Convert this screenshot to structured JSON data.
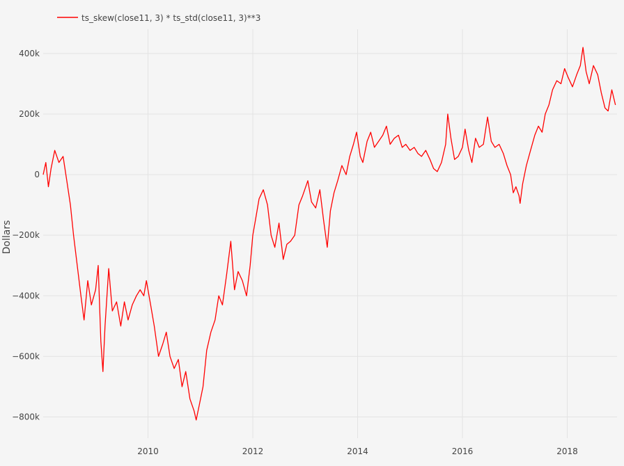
{
  "chart_data": {
    "type": "line",
    "ylabel": "Dollars",
    "xlim": [
      2008.0,
      2018.95
    ],
    "ylim": [
      -870000,
      480000
    ],
    "x_ticks": [
      {
        "value": 2010,
        "label": "2010"
      },
      {
        "value": 2012,
        "label": "2012"
      },
      {
        "value": 2014,
        "label": "2014"
      },
      {
        "value": 2016,
        "label": "2016"
      },
      {
        "value": 2018,
        "label": "2018"
      }
    ],
    "y_ticks": [
      {
        "value": 400000,
        "label": "400k"
      },
      {
        "value": 200000,
        "label": "200k"
      },
      {
        "value": 0,
        "label": "0"
      },
      {
        "value": -200000,
        "label": "−200k"
      },
      {
        "value": -400000,
        "label": "−400k"
      },
      {
        "value": -600000,
        "label": "−600k"
      },
      {
        "value": -800000,
        "label": "−800k"
      }
    ],
    "grid": true,
    "legend_position": "top-left",
    "series": [
      {
        "name": "ts_skew(close11, 3) * ts_std(close11, 3)**3",
        "color": "#ff0000",
        "points": [
          [
            2008.0,
            0
          ],
          [
            2008.05,
            40000
          ],
          [
            2008.1,
            -40000
          ],
          [
            2008.15,
            20000
          ],
          [
            2008.22,
            80000
          ],
          [
            2008.3,
            40000
          ],
          [
            2008.38,
            60000
          ],
          [
            2008.45,
            -20000
          ],
          [
            2008.52,
            -100000
          ],
          [
            2008.58,
            -200000
          ],
          [
            2008.65,
            -300000
          ],
          [
            2008.72,
            -400000
          ],
          [
            2008.78,
            -480000
          ],
          [
            2008.85,
            -350000
          ],
          [
            2008.92,
            -430000
          ],
          [
            2009.0,
            -380000
          ],
          [
            2009.05,
            -300000
          ],
          [
            2009.1,
            -550000
          ],
          [
            2009.14,
            -650000
          ],
          [
            2009.18,
            -500000
          ],
          [
            2009.25,
            -310000
          ],
          [
            2009.32,
            -450000
          ],
          [
            2009.4,
            -420000
          ],
          [
            2009.48,
            -500000
          ],
          [
            2009.55,
            -420000
          ],
          [
            2009.62,
            -480000
          ],
          [
            2009.7,
            -430000
          ],
          [
            2009.78,
            -400000
          ],
          [
            2009.85,
            -380000
          ],
          [
            2009.92,
            -400000
          ],
          [
            2009.97,
            -350000
          ],
          [
            2010.05,
            -430000
          ],
          [
            2010.12,
            -500000
          ],
          [
            2010.2,
            -600000
          ],
          [
            2010.28,
            -560000
          ],
          [
            2010.35,
            -520000
          ],
          [
            2010.42,
            -600000
          ],
          [
            2010.5,
            -640000
          ],
          [
            2010.58,
            -610000
          ],
          [
            2010.65,
            -700000
          ],
          [
            2010.72,
            -650000
          ],
          [
            2010.8,
            -740000
          ],
          [
            2010.88,
            -780000
          ],
          [
            2010.92,
            -810000
          ],
          [
            2010.98,
            -760000
          ],
          [
            2011.05,
            -700000
          ],
          [
            2011.12,
            -580000
          ],
          [
            2011.2,
            -520000
          ],
          [
            2011.28,
            -480000
          ],
          [
            2011.35,
            -400000
          ],
          [
            2011.42,
            -430000
          ],
          [
            2011.5,
            -330000
          ],
          [
            2011.58,
            -220000
          ],
          [
            2011.65,
            -380000
          ],
          [
            2011.72,
            -320000
          ],
          [
            2011.8,
            -350000
          ],
          [
            2011.88,
            -400000
          ],
          [
            2011.95,
            -300000
          ],
          [
            2012.0,
            -200000
          ],
          [
            2012.05,
            -150000
          ],
          [
            2012.12,
            -80000
          ],
          [
            2012.2,
            -50000
          ],
          [
            2012.28,
            -100000
          ],
          [
            2012.35,
            -200000
          ],
          [
            2012.42,
            -240000
          ],
          [
            2012.5,
            -160000
          ],
          [
            2012.58,
            -280000
          ],
          [
            2012.65,
            -230000
          ],
          [
            2012.72,
            -220000
          ],
          [
            2012.8,
            -200000
          ],
          [
            2012.88,
            -100000
          ],
          [
            2012.95,
            -70000
          ],
          [
            2013.05,
            -20000
          ],
          [
            2013.12,
            -90000
          ],
          [
            2013.2,
            -110000
          ],
          [
            2013.28,
            -50000
          ],
          [
            2013.35,
            -150000
          ],
          [
            2013.42,
            -240000
          ],
          [
            2013.48,
            -120000
          ],
          [
            2013.55,
            -60000
          ],
          [
            2013.62,
            -20000
          ],
          [
            2013.7,
            30000
          ],
          [
            2013.78,
            0
          ],
          [
            2013.85,
            60000
          ],
          [
            2013.92,
            100000
          ],
          [
            2013.98,
            140000
          ],
          [
            2014.05,
            60000
          ],
          [
            2014.1,
            40000
          ],
          [
            2014.18,
            110000
          ],
          [
            2014.25,
            140000
          ],
          [
            2014.32,
            90000
          ],
          [
            2014.4,
            110000
          ],
          [
            2014.48,
            130000
          ],
          [
            2014.55,
            160000
          ],
          [
            2014.62,
            100000
          ],
          [
            2014.7,
            120000
          ],
          [
            2014.78,
            130000
          ],
          [
            2014.85,
            90000
          ],
          [
            2014.92,
            100000
          ],
          [
            2015.0,
            80000
          ],
          [
            2015.08,
            90000
          ],
          [
            2015.15,
            70000
          ],
          [
            2015.22,
            60000
          ],
          [
            2015.3,
            80000
          ],
          [
            2015.38,
            50000
          ],
          [
            2015.45,
            20000
          ],
          [
            2015.52,
            10000
          ],
          [
            2015.6,
            40000
          ],
          [
            2015.68,
            100000
          ],
          [
            2015.72,
            200000
          ],
          [
            2015.78,
            120000
          ],
          [
            2015.85,
            50000
          ],
          [
            2015.92,
            60000
          ],
          [
            2016.0,
            90000
          ],
          [
            2016.05,
            150000
          ],
          [
            2016.12,
            80000
          ],
          [
            2016.18,
            40000
          ],
          [
            2016.25,
            120000
          ],
          [
            2016.32,
            90000
          ],
          [
            2016.4,
            100000
          ],
          [
            2016.48,
            190000
          ],
          [
            2016.55,
            110000
          ],
          [
            2016.62,
            90000
          ],
          [
            2016.7,
            100000
          ],
          [
            2016.78,
            70000
          ],
          [
            2016.85,
            30000
          ],
          [
            2016.92,
            0
          ],
          [
            2016.97,
            -60000
          ],
          [
            2017.02,
            -40000
          ],
          [
            2017.08,
            -70000
          ],
          [
            2017.1,
            -95000
          ],
          [
            2017.15,
            -30000
          ],
          [
            2017.22,
            30000
          ],
          [
            2017.3,
            80000
          ],
          [
            2017.38,
            130000
          ],
          [
            2017.45,
            160000
          ],
          [
            2017.52,
            140000
          ],
          [
            2017.58,
            200000
          ],
          [
            2017.65,
            230000
          ],
          [
            2017.72,
            280000
          ],
          [
            2017.8,
            310000
          ],
          [
            2017.88,
            300000
          ],
          [
            2017.95,
            350000
          ],
          [
            2018.02,
            320000
          ],
          [
            2018.1,
            290000
          ],
          [
            2018.18,
            330000
          ],
          [
            2018.25,
            360000
          ],
          [
            2018.3,
            420000
          ],
          [
            2018.36,
            340000
          ],
          [
            2018.42,
            300000
          ],
          [
            2018.5,
            360000
          ],
          [
            2018.58,
            330000
          ],
          [
            2018.65,
            270000
          ],
          [
            2018.72,
            220000
          ],
          [
            2018.78,
            210000
          ],
          [
            2018.85,
            280000
          ],
          [
            2018.92,
            230000
          ]
        ]
      }
    ]
  }
}
